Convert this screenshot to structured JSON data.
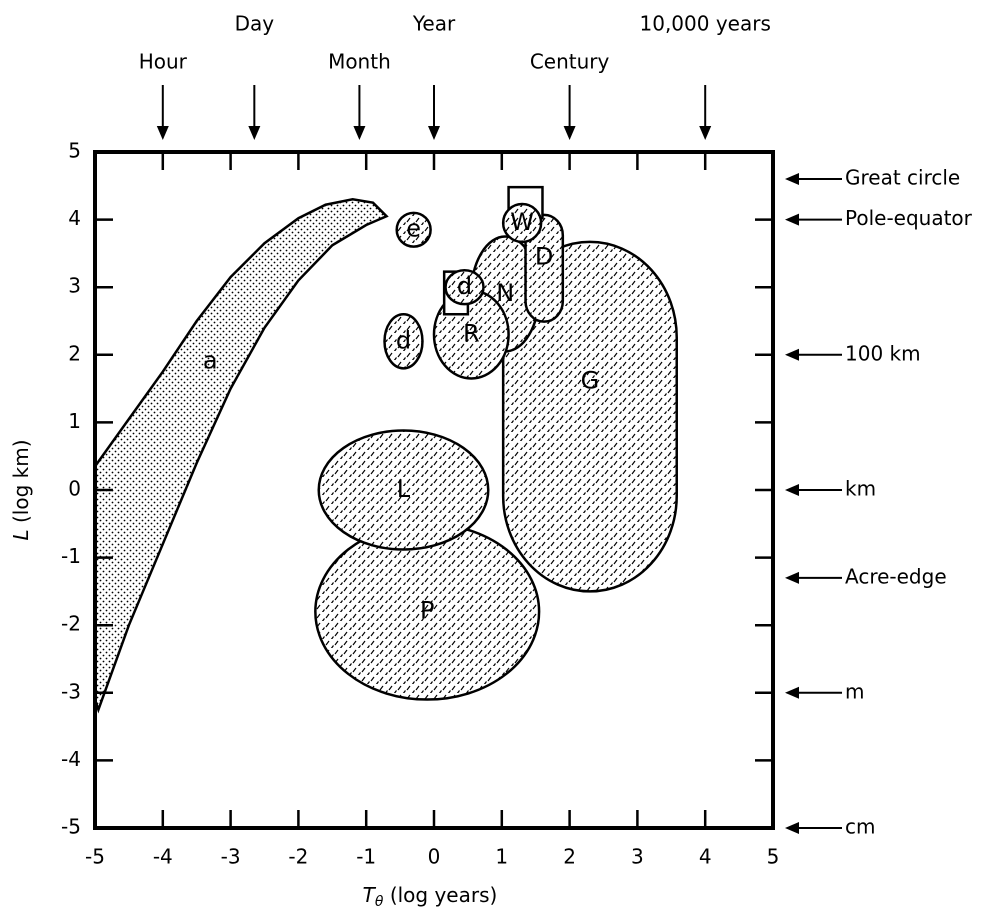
{
  "chart_data": {
    "type": "region",
    "xlim": [
      -5,
      5
    ],
    "ylim": [
      -5,
      5
    ],
    "xticks": [
      -5,
      -4,
      -3,
      -2,
      -1,
      0,
      1,
      2,
      3,
      4,
      5
    ],
    "yticks": [
      -5,
      -4,
      -3,
      -2,
      -1,
      0,
      1,
      2,
      3,
      4,
      5
    ],
    "x_label": {
      "symbol": "T",
      "subscript": "θ",
      "text": " (log years)"
    },
    "y_label": {
      "symbol": "L",
      "text": " (log km)"
    },
    "top_markers": [
      {
        "name": "Hour",
        "value": -4
      },
      {
        "name": "Day",
        "value": -2.65
      },
      {
        "name": "Month",
        "value": -1.1
      },
      {
        "name": "Year",
        "value": 0
      },
      {
        "name": "Century",
        "value": 2
      },
      {
        "name": "10,000 years",
        "value": 4
      }
    ],
    "right_markers": [
      {
        "name": "Great circle",
        "value": 4.6
      },
      {
        "name": "Pole-equator",
        "value": 4.0
      },
      {
        "name": "100 km",
        "value": 2.0
      },
      {
        "name": "km",
        "value": 0
      },
      {
        "name": "Acre-edge",
        "value": -1.3
      },
      {
        "name": "m",
        "value": -3
      },
      {
        "name": "cm",
        "value": -5
      }
    ],
    "regions": [
      {
        "label": "a",
        "shape": "polygon",
        "fill": "dots",
        "label_at": [
          -3.3,
          1.9
        ],
        "points": [
          [
            -5,
            0.35
          ],
          [
            -4.5,
            1.05
          ],
          [
            -4,
            1.75
          ],
          [
            -3.5,
            2.5
          ],
          [
            -3,
            3.15
          ],
          [
            -2.5,
            3.65
          ],
          [
            -2,
            4.02
          ],
          [
            -1.6,
            4.22
          ],
          [
            -1.2,
            4.3
          ],
          [
            -0.9,
            4.25
          ],
          [
            -0.7,
            4.05
          ],
          [
            -1,
            3.92
          ],
          [
            -1.5,
            3.62
          ],
          [
            -2,
            3.1
          ],
          [
            -2.5,
            2.4
          ],
          [
            -3,
            1.5
          ],
          [
            -3.5,
            0.4
          ],
          [
            -4,
            -0.8
          ],
          [
            -4.5,
            -2.0
          ],
          [
            -4.95,
            -3.25
          ],
          [
            -5,
            -3.1
          ]
        ]
      },
      {
        "label": "P",
        "shape": "ellipse",
        "fill": "dashes",
        "cx": -0.1,
        "cy": -1.8,
        "rx": 1.65,
        "ry": 1.3
      },
      {
        "label": "L",
        "shape": "ellipse",
        "fill": "dashes",
        "cx": -0.45,
        "cy": 0,
        "rx": 1.25,
        "ry": 0.88
      },
      {
        "label": "G",
        "shape": "capsule",
        "fill": "dashes",
        "x0": 1.02,
        "x1": 3.58,
        "y0": -1.5,
        "y1": 3.67
      },
      {
        "label": "N",
        "shape": "ellipse",
        "fill": "dashes",
        "cx": 1.05,
        "cy": 2.9,
        "rx": 0.5,
        "ry": 0.85
      },
      {
        "label": "D",
        "shape": "capsule",
        "fill": "dashes",
        "x0": 1.35,
        "x1": 1.9,
        "y0": 2.49,
        "y1": 4.07
      },
      {
        "label": "R",
        "shape": "ellipse",
        "fill": "dashes",
        "cx": 0.55,
        "cy": 2.3,
        "rx": 0.55,
        "ry": 0.65
      },
      {
        "label": "d",
        "shape": "ellipse",
        "fill": "dashes",
        "cx": -0.45,
        "cy": 2.2,
        "rx": 0.28,
        "ry": 0.4
      },
      {
        "label": "d",
        "shape": "boxed",
        "fill": "dashes",
        "cx": 0.45,
        "cy": 3.0,
        "rx": 0.28,
        "ry": 0.25,
        "box": [
          0.15,
          0.5,
          2.6,
          3.23
        ]
      },
      {
        "label": "W",
        "shape": "boxed",
        "fill": "dashes",
        "cx": 1.3,
        "cy": 3.95,
        "rx": 0.28,
        "ry": 0.28,
        "box": [
          1.1,
          1.6,
          4.02,
          4.48
        ]
      },
      {
        "label": "e",
        "shape": "ellipse",
        "fill": "dashes",
        "cx": -0.3,
        "cy": 3.85,
        "rx": 0.25,
        "ry": 0.25
      }
    ]
  }
}
